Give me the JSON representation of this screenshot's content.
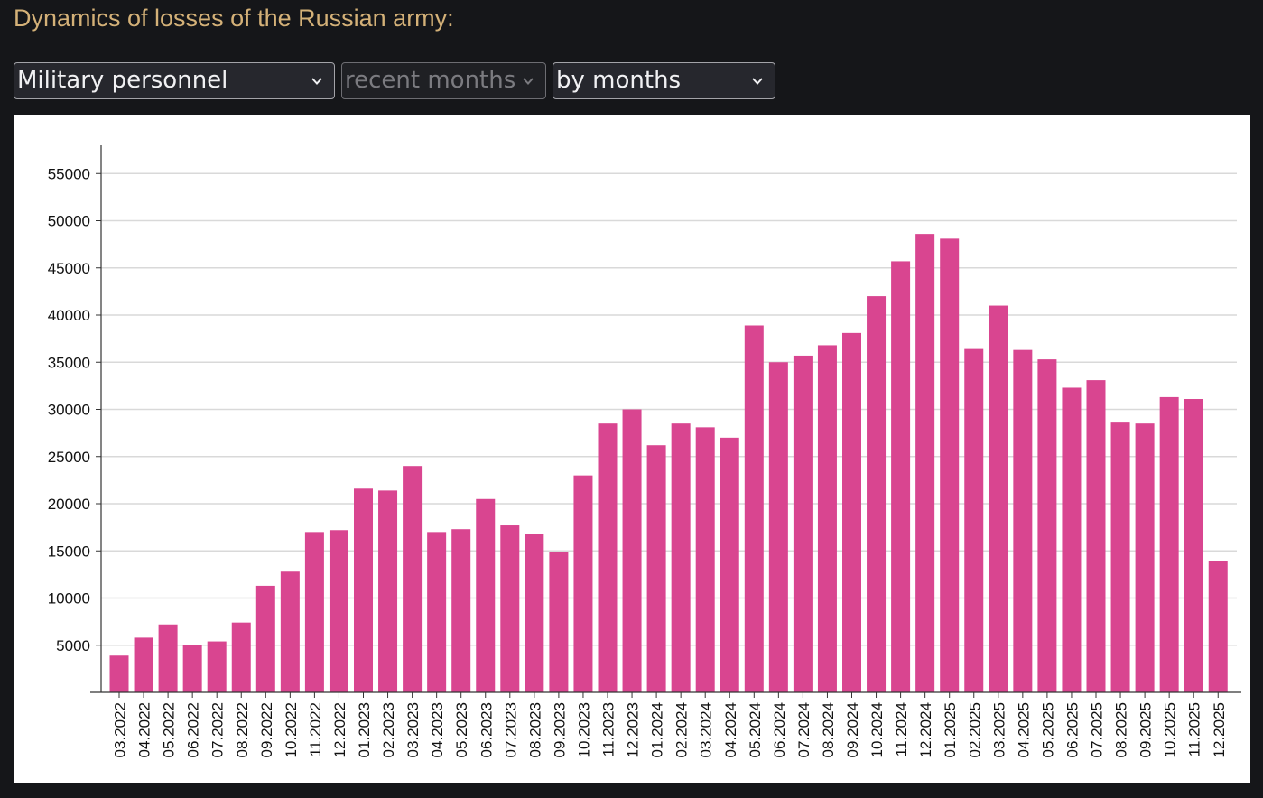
{
  "header": {
    "title": "Dynamics of losses of the Russian army:"
  },
  "filters": {
    "category": {
      "value": "Military personnel",
      "icon": "chevron-down-icon"
    },
    "period": {
      "value": "recent months",
      "icon": "chevron-down-icon",
      "disabled": true
    },
    "grouping": {
      "value": "by months",
      "icon": "chevron-down-icon"
    }
  },
  "colors": {
    "page_background": "#151619",
    "title": "#d4b178",
    "bar": "#d94590",
    "grid": "#d9d9d9",
    "axis": "#333333",
    "text": "#111111"
  },
  "chart_data": {
    "type": "bar",
    "title": "",
    "xlabel": "",
    "ylabel": "",
    "ylim": [
      0,
      58000
    ],
    "yticks": [
      5000,
      10000,
      15000,
      20000,
      25000,
      30000,
      35000,
      40000,
      45000,
      50000,
      55000
    ],
    "grid": true,
    "categories": [
      "03.2022",
      "04.2022",
      "05.2022",
      "06.2022",
      "07.2022",
      "08.2022",
      "09.2022",
      "10.2022",
      "11.2022",
      "12.2022",
      "01.2023",
      "02.2023",
      "03.2023",
      "04.2023",
      "05.2023",
      "06.2023",
      "07.2023",
      "08.2023",
      "09.2023",
      "10.2023",
      "11.2023",
      "12.2023",
      "01.2024",
      "02.2024",
      "03.2024",
      "04.2024",
      "05.2024",
      "06.2024",
      "07.2024",
      "08.2024",
      "09.2024",
      "10.2024",
      "11.2024",
      "12.2024",
      "01.2025",
      "02.2025",
      "03.2025",
      "04.2025",
      "05.2025",
      "06.2025",
      "07.2025",
      "08.2025",
      "09.2025",
      "10.2025",
      "11.2025",
      "12.2025"
    ],
    "values": [
      3900,
      5800,
      7200,
      5000,
      5400,
      7400,
      11300,
      12800,
      17000,
      17200,
      21600,
      21400,
      24000,
      17000,
      17300,
      20500,
      17700,
      16800,
      14900,
      23000,
      28500,
      30000,
      26200,
      28500,
      28100,
      27000,
      38900,
      35000,
      35700,
      36800,
      38100,
      42000,
      45700,
      48600,
      48100,
      36400,
      41000,
      36300,
      35300,
      32300,
      33100,
      28600,
      28500,
      31300,
      31100,
      13900
    ]
  }
}
